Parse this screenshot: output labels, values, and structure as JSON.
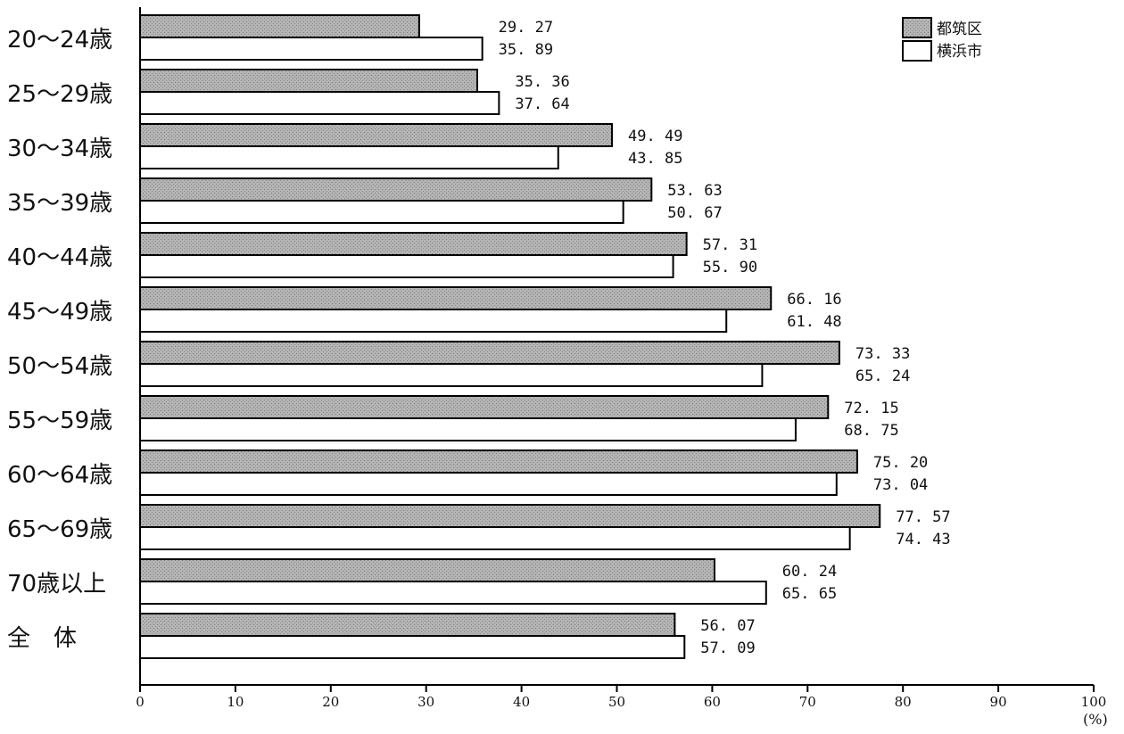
{
  "chart_data": {
    "type": "bar",
    "orientation": "horizontal",
    "categories": [
      "20〜24歳",
      "25〜29歳",
      "30〜34歳",
      "35〜39歳",
      "40〜44歳",
      "45〜49歳",
      "50〜54歳",
      "55〜59歳",
      "60〜64歳",
      "65〜69歳",
      "70歳以上",
      "全　体"
    ],
    "series": [
      {
        "name": "都筑区",
        "values": [
          29.27,
          35.36,
          49.49,
          53.63,
          57.31,
          66.16,
          73.33,
          72.15,
          75.2,
          77.57,
          60.24,
          56.07
        ],
        "labels": [
          "29. 27",
          "35. 36",
          "49. 49",
          "53. 63",
          "57. 31",
          "66. 16",
          "73. 33",
          "72. 15",
          "75. 20",
          "77. 57",
          "60. 24",
          "56. 07"
        ],
        "color": "#a8a8a8"
      },
      {
        "name": "横浜市",
        "values": [
          35.89,
          37.64,
          43.85,
          50.67,
          55.9,
          61.48,
          65.24,
          68.75,
          73.04,
          74.43,
          65.65,
          57.09
        ],
        "labels": [
          "35. 89",
          "37. 64",
          "43. 85",
          "50. 67",
          "55. 90",
          "61. 48",
          "65. 24",
          "68. 75",
          "73. 04",
          "74. 43",
          "65. 65",
          "57. 09"
        ],
        "color": "#ffffff"
      }
    ],
    "xlim": [
      0,
      100
    ],
    "xticks": [
      "0",
      "10",
      "20",
      "30",
      "40",
      "50",
      "60",
      "70",
      "80",
      "90",
      "100"
    ],
    "unit_label": "(%)",
    "grid": false,
    "legend_position": "top-right"
  }
}
